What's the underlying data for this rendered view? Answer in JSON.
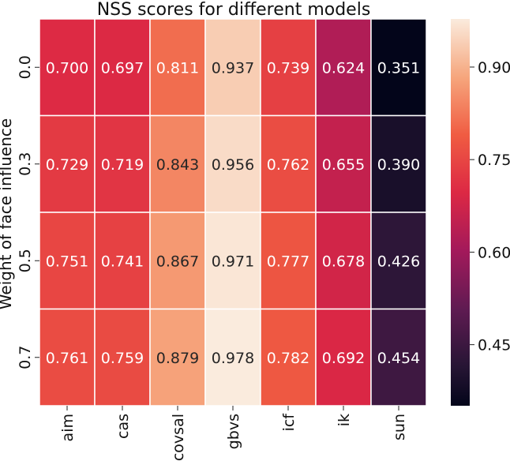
{
  "chart_data": {
    "type": "heatmap",
    "title": "NSS scores for different models",
    "xlabel": "",
    "ylabel": "Weight of face influence",
    "x_categories": [
      "aim",
      "cas",
      "covsal",
      "gbvs",
      "icf",
      "ik",
      "sun"
    ],
    "y_categories": [
      "0.0",
      "0.3",
      "0.5",
      "0.7"
    ],
    "values": [
      [
        0.7,
        0.697,
        0.811,
        0.937,
        0.739,
        0.624,
        0.351
      ],
      [
        0.729,
        0.719,
        0.843,
        0.956,
        0.762,
        0.655,
        0.39
      ],
      [
        0.751,
        0.741,
        0.867,
        0.971,
        0.777,
        0.678,
        0.426
      ],
      [
        0.761,
        0.759,
        0.879,
        0.978,
        0.782,
        0.692,
        0.454
      ]
    ],
    "colorbar": {
      "vmin": 0.351,
      "vmax": 0.978,
      "ticks": [
        0.45,
        0.6,
        0.75,
        0.9
      ],
      "tick_labels": [
        "0.45",
        "0.60",
        "0.75",
        "0.90"
      ],
      "colormap": "rocket"
    },
    "annotations": true,
    "value_format": "0.000"
  }
}
